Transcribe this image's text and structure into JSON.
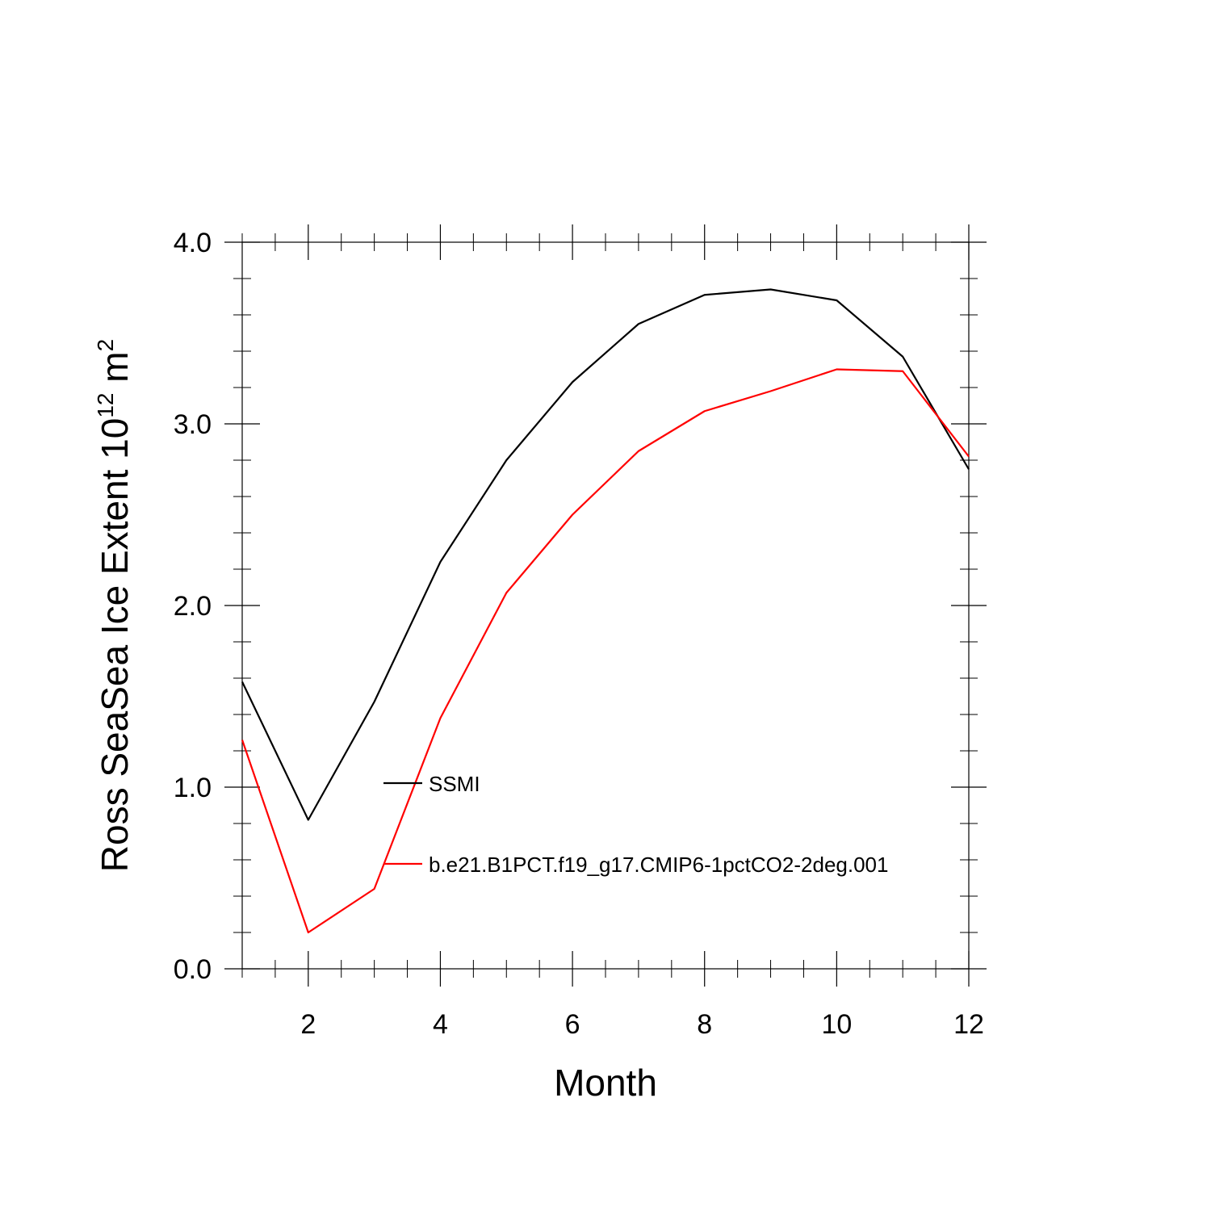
{
  "chart_data": {
    "type": "line",
    "xlabel": "Month",
    "ylabel": {
      "main": "Ross SeaSea Ice Extent 10",
      "exp1": "12",
      "unit": " m",
      "exp2": "2"
    },
    "xlim": [
      1,
      12
    ],
    "ylim": [
      0.0,
      4.0
    ],
    "xticks": [
      2,
      4,
      6,
      8,
      10,
      12
    ],
    "xtick_labels": [
      "2",
      "4",
      "6",
      "8",
      "10",
      "12"
    ],
    "yticks": [
      0.0,
      1.0,
      2.0,
      3.0,
      4.0
    ],
    "ytick_labels": [
      "0.0",
      "1.0",
      "2.0",
      "3.0",
      "4.0"
    ],
    "grid": false,
    "legend_position": "center-left",
    "x": [
      1,
      2,
      3,
      4,
      5,
      6,
      7,
      8,
      9,
      10,
      11,
      12
    ],
    "series": [
      {
        "name": "SSMI",
        "color": "#000000",
        "values": [
          1.58,
          0.82,
          1.47,
          2.24,
          2.8,
          3.23,
          3.55,
          3.71,
          3.74,
          3.68,
          3.37,
          2.75
        ]
      },
      {
        "name": "b.e21.B1PCT.f19_g17.CMIP6-1pctCO2-2deg.001",
        "color": "#ff0000",
        "values": [
          1.26,
          0.2,
          0.44,
          1.38,
          2.07,
          2.5,
          2.85,
          3.07,
          3.18,
          3.3,
          3.29,
          2.82
        ]
      }
    ]
  }
}
